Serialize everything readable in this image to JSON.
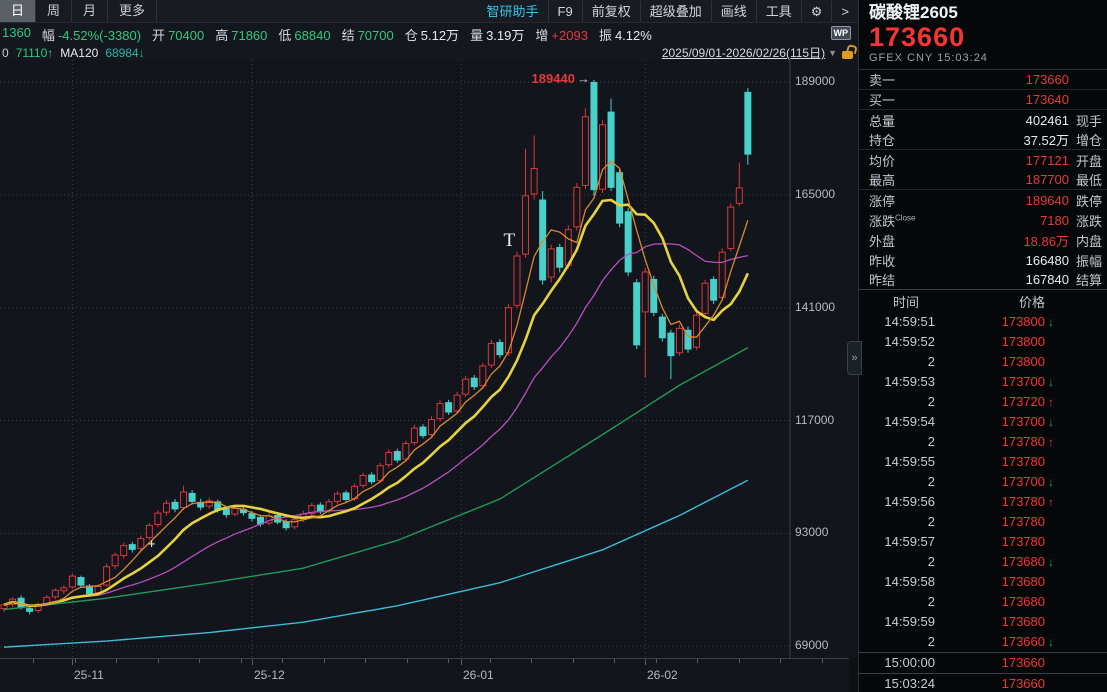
{
  "topbar": {
    "period_tabs": [
      {
        "label": "日",
        "selected": true
      },
      {
        "label": "周",
        "selected": false
      },
      {
        "label": "月",
        "selected": false
      },
      {
        "label": "更多",
        "selected": false
      }
    ],
    "assistant_button": "智研助手",
    "menu_items": [
      "F9",
      "前复权",
      "超级叠加",
      "画线",
      "工具"
    ],
    "gear_icon": "⚙",
    "more_arrow": ">",
    "quote_fields": [
      {
        "label": "",
        "value": "1360",
        "cls": "green"
      },
      {
        "label": "幅",
        "value": "-4.52%(-3380)",
        "cls": "green"
      },
      {
        "label": "开",
        "value": "70400",
        "cls": "green"
      },
      {
        "label": "高",
        "value": "71860",
        "cls": "green"
      },
      {
        "label": "低",
        "value": "68840",
        "cls": "green"
      },
      {
        "label": "结",
        "value": "70700",
        "cls": "green"
      },
      {
        "label": "仓",
        "value": "5.12万",
        "cls": "white"
      },
      {
        "label": "量",
        "value": "3.19万",
        "cls": "white"
      },
      {
        "label": "增",
        "value": "+2093",
        "cls": "red"
      },
      {
        "label": "振",
        "value": "4.12%",
        "cls": "white"
      }
    ],
    "wp_badge": "WP",
    "ma_legend": [
      {
        "text": "0",
        "cls": "gray"
      },
      {
        "text": "71110↑",
        "cls": "green"
      },
      {
        "text": "MA120",
        "cls": "white"
      },
      {
        "text": "68984↓",
        "cls": "teal"
      }
    ],
    "date_range": "2025/09/01-2026/02/26(115日)",
    "caret": "▼"
  },
  "panel": {
    "title": "碳酸锂2605",
    "last_price": "173660",
    "exchange": "GFEX",
    "currency": "CNY",
    "time": "15:03:24",
    "rows": [
      {
        "l": "卖一",
        "v": "173660",
        "c": "red",
        "l2": ""
      },
      {
        "l": "买一",
        "v": "173640",
        "c": "red",
        "l2": ""
      },
      {
        "l": "总量",
        "v": "402461",
        "c": "white",
        "l2": "现手"
      },
      {
        "l": "持仓",
        "v": "37.52万",
        "c": "white",
        "l2": "增仓"
      },
      {
        "l": "均价",
        "v": "177121",
        "c": "red",
        "l2": "开盘"
      },
      {
        "l": "最高",
        "v": "187700",
        "c": "red",
        "l2": "最低"
      },
      {
        "l": "涨停",
        "v": "189640",
        "c": "red",
        "l2": "跌停"
      },
      {
        "l": "涨跌",
        "sup": "Close",
        "v": "7180",
        "c": "red",
        "l2": "涨跌"
      },
      {
        "l": "外盘",
        "v": "18.86万",
        "c": "red",
        "l2": "内盘"
      },
      {
        "l": "昨收",
        "v": "166480",
        "c": "white",
        "l2": "振幅"
      },
      {
        "l": "昨结",
        "v": "167840",
        "c": "white",
        "l2": "结算"
      }
    ],
    "ticks": {
      "time_header": "时间",
      "price_header": "价格",
      "rows": [
        [
          "14:59:51",
          "173800",
          "down"
        ],
        [
          "14:59:52",
          "173800",
          ""
        ],
        [
          "2",
          "173800",
          ""
        ],
        [
          "14:59:53",
          "173700",
          "down"
        ],
        [
          "2",
          "173720",
          "up"
        ],
        [
          "14:59:54",
          "173700",
          "down"
        ],
        [
          "2",
          "173780",
          "up"
        ],
        [
          "14:59:55",
          "173780",
          ""
        ],
        [
          "2",
          "173700",
          "down"
        ],
        [
          "14:59:56",
          "173780",
          "up"
        ],
        [
          "2",
          "173780",
          ""
        ],
        [
          "14:59:57",
          "173780",
          ""
        ],
        [
          "2",
          "173680",
          "down"
        ],
        [
          "14:59:58",
          "173680",
          ""
        ],
        [
          "2",
          "173680",
          ""
        ],
        [
          "14:59:59",
          "173680",
          ""
        ],
        [
          "2",
          "173660",
          "down"
        ],
        [
          "15:00:00",
          "173660",
          ""
        ],
        [
          "15:03:24",
          "173660",
          ""
        ]
      ]
    },
    "expand_handle": "»"
  },
  "chart_data": {
    "type": "candlestick",
    "symbol": "碳酸锂2605",
    "period": "日",
    "visible_range": "2025/09/01-2026/02/26(115日)",
    "ylim": [
      66490,
      193680
    ],
    "y_ticks": [
      189000,
      165000,
      141000,
      117000,
      93000,
      69000
    ],
    "x_ticks": [
      {
        "label": "25-11",
        "day": 8
      },
      {
        "label": "25-12",
        "day": 29
      },
      {
        "label": "26-01",
        "day": 53.5
      },
      {
        "label": "26-02",
        "day": 75
      }
    ],
    "high_annotation": {
      "text": "189440",
      "arrow": "→",
      "day": 69,
      "price": 189440
    },
    "t_marker": {
      "text": "T",
      "day": 59,
      "price": 155000
    },
    "cross_marker": {
      "text": "+",
      "day": 17.3,
      "price": 90500
    },
    "colors": {
      "up": "#d8383c",
      "down": "#47d1ca",
      "ma5": "#d9892f",
      "ma10": "#e5d23f",
      "ma20": "#b84fc0",
      "ma60": "#219a58",
      "ma120": "#3bbdd6",
      "grid": "#3a4049",
      "axis": "#3a4049",
      "label": "#b6bac2",
      "bg": "#12151b"
    },
    "candles": [
      [
        77000,
        78100,
        76300,
        77800
      ],
      [
        77900,
        79400,
        77300,
        79000
      ],
      [
        79200,
        79800,
        76800,
        77200
      ],
      [
        77000,
        77600,
        75800,
        76400
      ],
      [
        76600,
        78300,
        76100,
        77900
      ],
      [
        78000,
        79900,
        77500,
        79400
      ],
      [
        79500,
        81300,
        79000,
        80900
      ],
      [
        80800,
        81900,
        80100,
        81400
      ],
      [
        81600,
        84400,
        81200,
        83900
      ],
      [
        83600,
        84000,
        81500,
        82000
      ],
      [
        81800,
        82200,
        79600,
        80200
      ],
      [
        80400,
        82100,
        79900,
        81700
      ],
      [
        82000,
        86600,
        81700,
        85900
      ],
      [
        86100,
        88900,
        85400,
        88400
      ],
      [
        88300,
        91000,
        87600,
        90400
      ],
      [
        90600,
        91200,
        88900,
        89600
      ],
      [
        89800,
        92500,
        89200,
        91900
      ],
      [
        92100,
        95200,
        91600,
        94700
      ],
      [
        94900,
        97900,
        94300,
        97300
      ],
      [
        97500,
        100100,
        96800,
        99400
      ],
      [
        99600,
        100300,
        97500,
        98200
      ],
      [
        98500,
        103140,
        98000,
        101800
      ],
      [
        101500,
        102200,
        99200,
        99800
      ],
      [
        99600,
        100400,
        97900,
        98600
      ],
      [
        98800,
        100600,
        98200,
        99900
      ],
      [
        99700,
        100200,
        97400,
        98000
      ],
      [
        98200,
        98800,
        96300,
        97000
      ],
      [
        97100,
        99000,
        96600,
        98300
      ],
      [
        98100,
        98700,
        96800,
        97400
      ],
      [
        97200,
        97800,
        95500,
        96200
      ],
      [
        96400,
        96900,
        94400,
        95000
      ],
      [
        95200,
        97300,
        94700,
        96700
      ],
      [
        96800,
        97400,
        94900,
        95400
      ],
      [
        95500,
        96000,
        93600,
        94200
      ],
      [
        94400,
        96400,
        93900,
        95900
      ],
      [
        96000,
        97800,
        95400,
        97100
      ],
      [
        97200,
        99500,
        96700,
        98900
      ],
      [
        99000,
        99600,
        97100,
        97600
      ],
      [
        97800,
        100300,
        97300,
        99700
      ],
      [
        99800,
        102000,
        99200,
        101400
      ],
      [
        101600,
        102100,
        99700,
        100200
      ],
      [
        100400,
        103600,
        99900,
        103000
      ],
      [
        103200,
        105900,
        102600,
        105300
      ],
      [
        105400,
        106000,
        103400,
        104000
      ],
      [
        104200,
        108000,
        103700,
        107400
      ],
      [
        107600,
        110900,
        107000,
        110200
      ],
      [
        110400,
        111000,
        108000,
        108600
      ],
      [
        108800,
        112700,
        108200,
        112100
      ],
      [
        112300,
        116100,
        111700,
        115400
      ],
      [
        115600,
        116200,
        113200,
        113800
      ],
      [
        114000,
        117900,
        113400,
        117200
      ],
      [
        117400,
        121300,
        116800,
        120600
      ],
      [
        120800,
        121400,
        118200,
        118800
      ],
      [
        119000,
        123100,
        118400,
        122400
      ],
      [
        122600,
        126500,
        122000,
        125800
      ],
      [
        126000,
        126700,
        123500,
        124200
      ],
      [
        124400,
        129300,
        123800,
        128600
      ],
      [
        128800,
        134200,
        128200,
        133400
      ],
      [
        133600,
        134300,
        130300,
        131000
      ],
      [
        131400,
        141800,
        130800,
        141000
      ],
      [
        141500,
        152900,
        140800,
        152000
      ],
      [
        152400,
        174800,
        151600,
        164800
      ],
      [
        165200,
        177640,
        164000,
        170600
      ],
      [
        163900,
        165800,
        145900,
        146900
      ],
      [
        147500,
        154400,
        146400,
        153500
      ],
      [
        153800,
        154600,
        148500,
        149600
      ],
      [
        150000,
        158500,
        149300,
        157600
      ],
      [
        158200,
        167500,
        157400,
        166600
      ],
      [
        167000,
        183400,
        166200,
        181600
      ],
      [
        188900,
        189440,
        164800,
        166100
      ],
      [
        166200,
        180800,
        165400,
        179900
      ],
      [
        182600,
        185480,
        165800,
        166600
      ],
      [
        169700,
        170600,
        158100,
        159000
      ],
      [
        161400,
        162200,
        147700,
        148600
      ],
      [
        146300,
        147100,
        132200,
        133100
      ],
      [
        140100,
        149500,
        126100,
        148600
      ],
      [
        147000,
        147800,
        139200,
        140000
      ],
      [
        139000,
        139700,
        133800,
        134600
      ],
      [
        135600,
        136300,
        125820,
        130800
      ],
      [
        131400,
        137400,
        130800,
        136600
      ],
      [
        136200,
        137000,
        131400,
        132200
      ],
      [
        132600,
        140200,
        132000,
        139400
      ],
      [
        139800,
        146900,
        139200,
        146200
      ],
      [
        147000,
        147700,
        141800,
        142600
      ],
      [
        143200,
        153600,
        142600,
        152800
      ],
      [
        153600,
        163200,
        153000,
        162400
      ],
      [
        163200,
        171820,
        162600,
        166480
      ],
      [
        186800,
        187700,
        171400,
        173660
      ]
    ],
    "ma60_anchors": [
      [
        0,
        76800
      ],
      [
        12,
        79200
      ],
      [
        24,
        82400
      ],
      [
        35,
        85600
      ],
      [
        46,
        91500
      ],
      [
        58,
        100300
      ],
      [
        70,
        114000
      ],
      [
        79,
        124500
      ],
      [
        87,
        132500
      ]
    ],
    "ma120_anchors": [
      [
        0,
        68800
      ],
      [
        12,
        70100
      ],
      [
        24,
        71900
      ],
      [
        35,
        74100
      ],
      [
        46,
        77600
      ],
      [
        58,
        82500
      ],
      [
        70,
        89500
      ],
      [
        79,
        96800
      ],
      [
        87,
        104300
      ]
    ]
  }
}
